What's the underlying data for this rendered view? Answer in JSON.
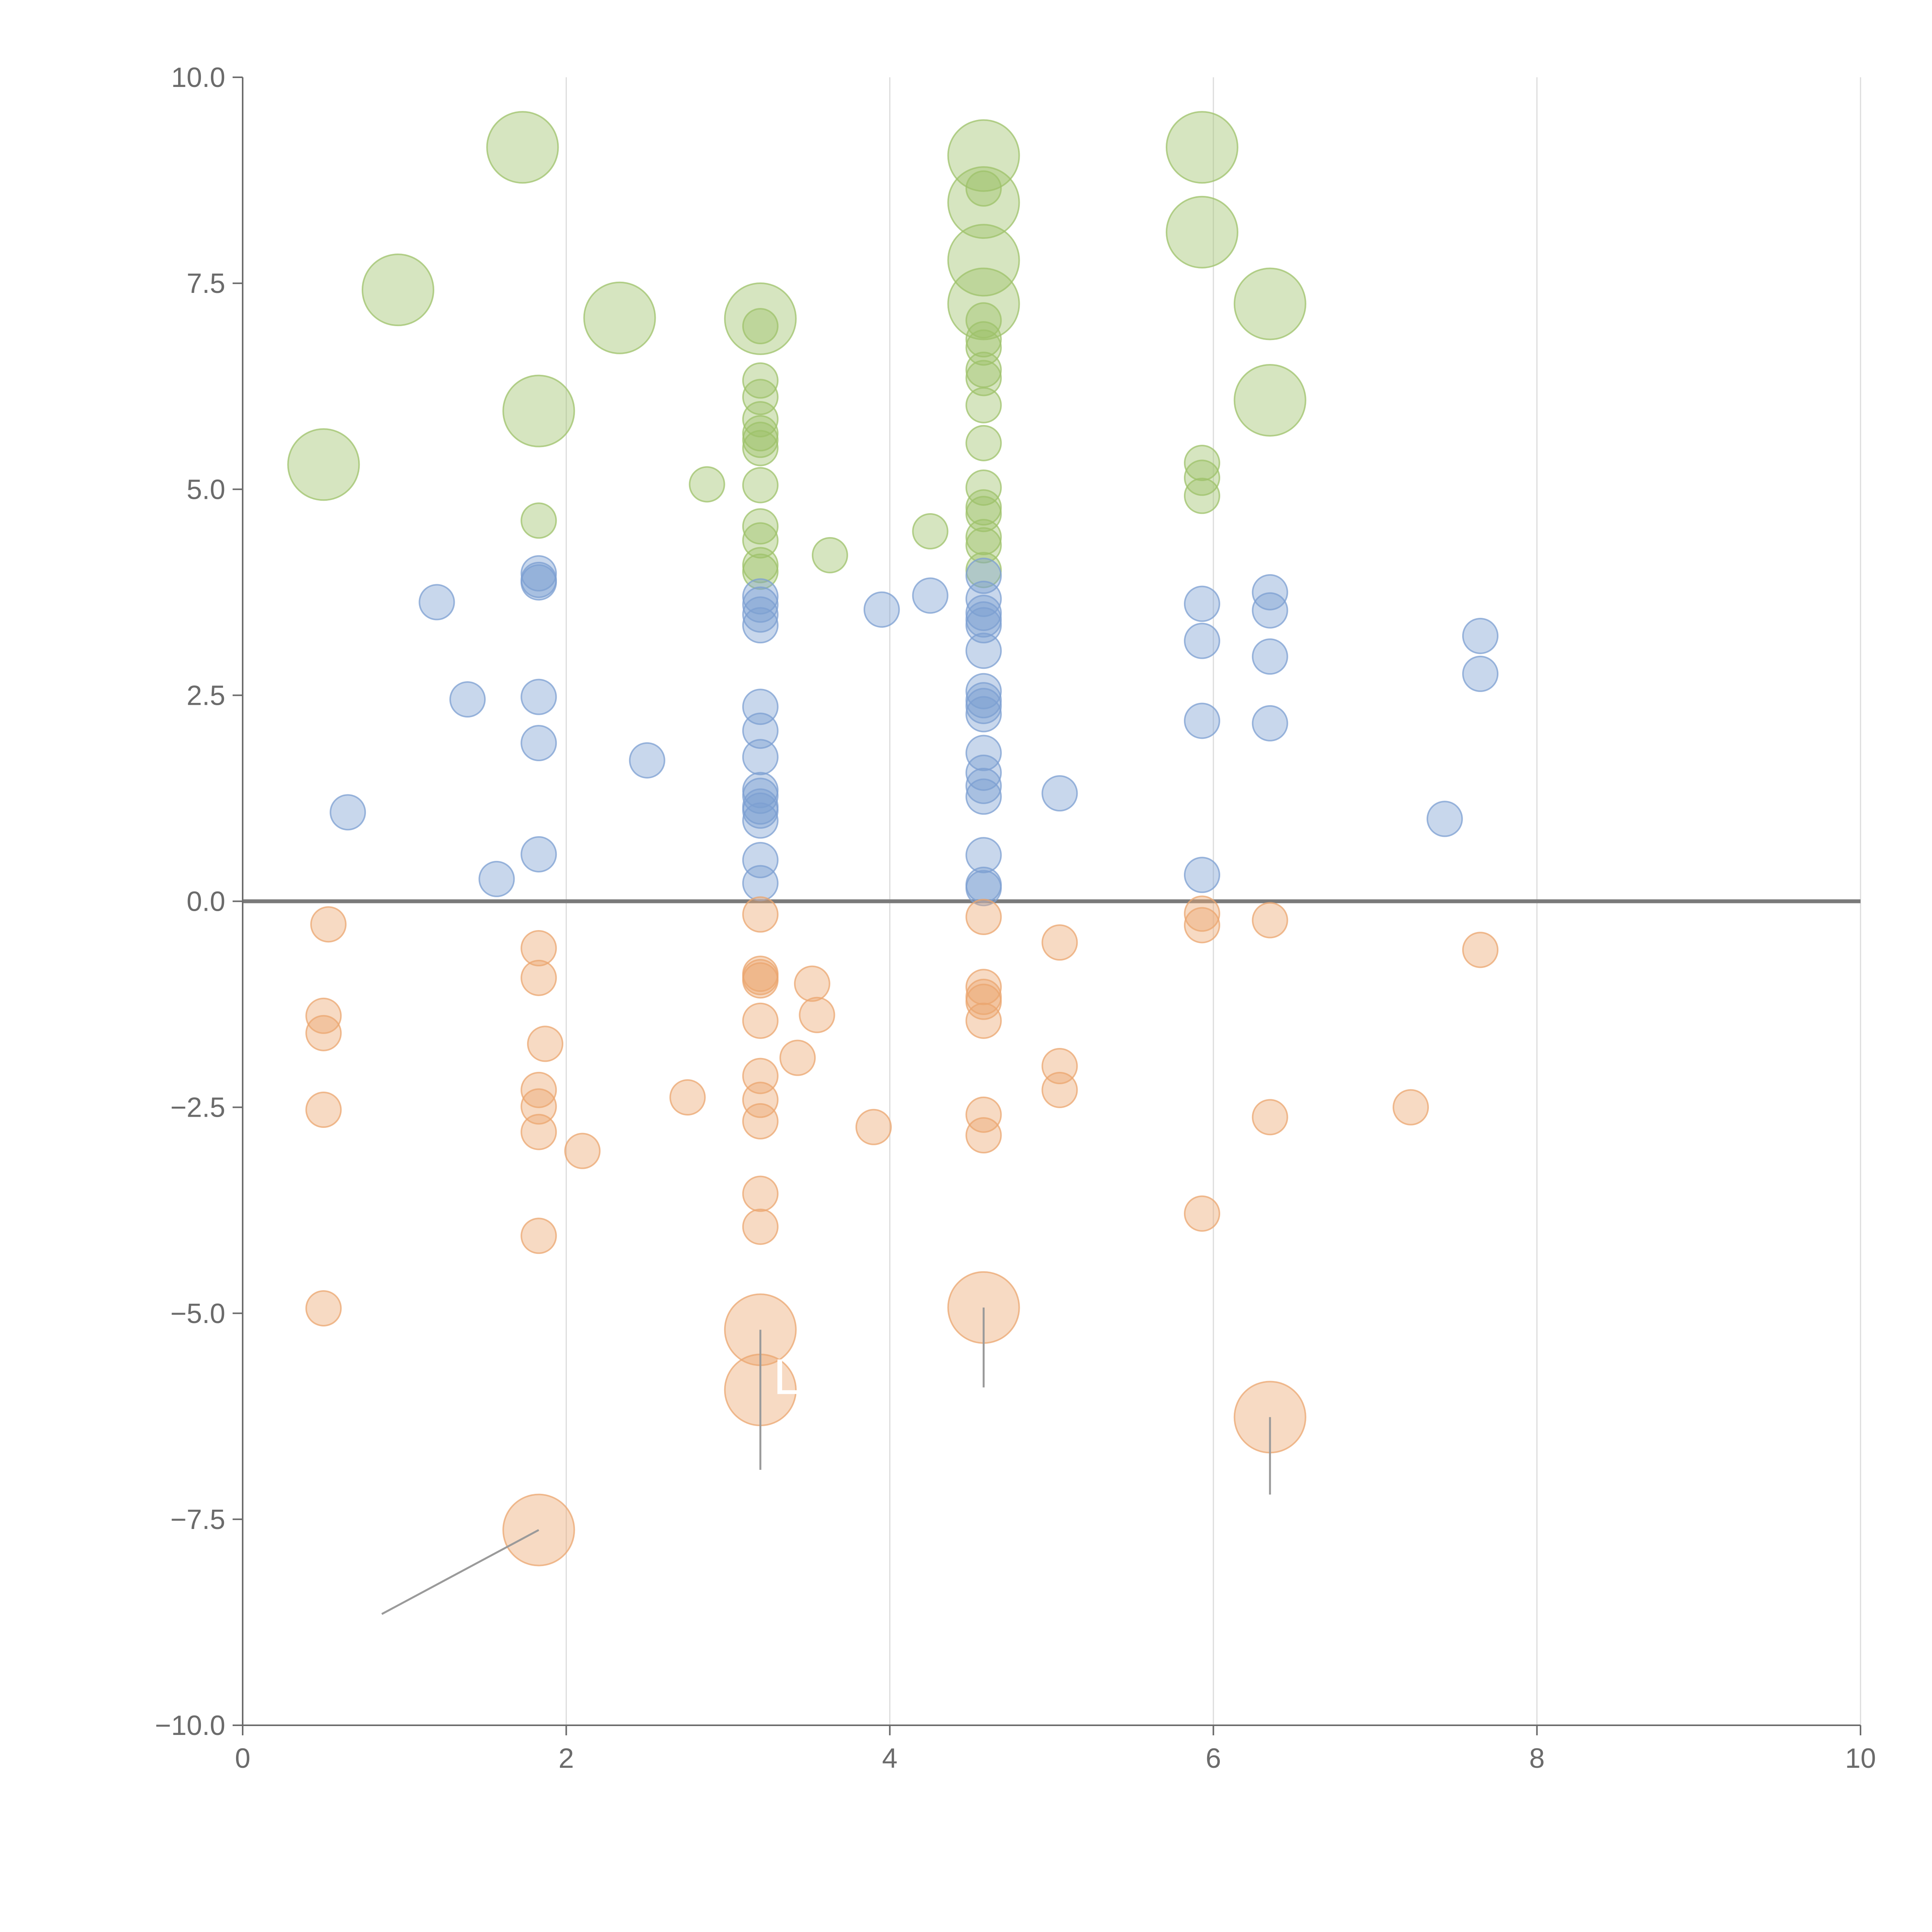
{
  "chart_data": {
    "type": "scatter",
    "title": "",
    "xlabel": "",
    "ylabel": "",
    "xlim": [
      0,
      10
    ],
    "ylim": [
      -10,
      10
    ],
    "x_ticks": [
      "0",
      "2",
      "4",
      "6",
      "8",
      "10"
    ],
    "x_tick_values": [
      0,
      2,
      4,
      6,
      8,
      10
    ],
    "y_ticks": [
      "10.0",
      "7.5",
      "5.0",
      "2.5",
      "0.0",
      "−2.5",
      "−5.0",
      "−7.5",
      "−10.0"
    ],
    "y_tick_values": [
      10,
      7.5,
      5,
      2.5,
      0,
      -2.5,
      -5,
      -7.5,
      -10
    ],
    "grid": "vertical",
    "reference_line": 0,
    "legend": "none",
    "series": [
      {
        "name": "green",
        "color": "#9dc26a",
        "points": [
          {
            "x": 1.73,
            "y": 9.15,
            "s": "large"
          },
          {
            "x": 0.96,
            "y": 7.42,
            "s": "large"
          },
          {
            "x": 2.33,
            "y": 7.08,
            "s": "large"
          },
          {
            "x": 1.83,
            "y": 5.95,
            "s": "large"
          },
          {
            "x": 0.5,
            "y": 5.3,
            "s": "large"
          },
          {
            "x": 3.2,
            "y": 7.07,
            "s": "large"
          },
          {
            "x": 4.58,
            "y": 9.05,
            "s": "large"
          },
          {
            "x": 4.58,
            "y": 8.48,
            "s": "large"
          },
          {
            "x": 4.58,
            "y": 7.78,
            "s": "large"
          },
          {
            "x": 4.58,
            "y": 7.25,
            "s": "large"
          },
          {
            "x": 5.93,
            "y": 9.15,
            "s": "large"
          },
          {
            "x": 5.93,
            "y": 8.12,
            "s": "large"
          },
          {
            "x": 6.35,
            "y": 7.25,
            "s": "large"
          },
          {
            "x": 6.35,
            "y": 6.08,
            "s": "large"
          },
          {
            "x": 1.83,
            "y": 4.62,
            "s": "small"
          },
          {
            "x": 2.87,
            "y": 5.06,
            "s": "small"
          },
          {
            "x": 3.63,
            "y": 4.2,
            "s": "small"
          },
          {
            "x": 4.25,
            "y": 4.49,
            "s": "small"
          },
          {
            "x": 3.2,
            "y": 6.98,
            "s": "small"
          },
          {
            "x": 3.2,
            "y": 6.32,
            "s": "small"
          },
          {
            "x": 3.2,
            "y": 6.12,
            "s": "small"
          },
          {
            "x": 3.2,
            "y": 5.85,
            "s": "small"
          },
          {
            "x": 3.2,
            "y": 5.68,
            "s": "small"
          },
          {
            "x": 3.2,
            "y": 5.6,
            "s": "small"
          },
          {
            "x": 3.2,
            "y": 5.5,
            "s": "small"
          },
          {
            "x": 3.2,
            "y": 5.05,
            "s": "small"
          },
          {
            "x": 3.2,
            "y": 4.55,
            "s": "small"
          },
          {
            "x": 3.2,
            "y": 4.38,
            "s": "small"
          },
          {
            "x": 3.2,
            "y": 4.08,
            "s": "small"
          },
          {
            "x": 3.2,
            "y": 4.0,
            "s": "small"
          },
          {
            "x": 4.58,
            "y": 8.65,
            "s": "small"
          },
          {
            "x": 4.58,
            "y": 7.05,
            "s": "small"
          },
          {
            "x": 4.58,
            "y": 6.82,
            "s": "small"
          },
          {
            "x": 4.58,
            "y": 6.72,
            "s": "small"
          },
          {
            "x": 4.58,
            "y": 6.45,
            "s": "small"
          },
          {
            "x": 4.58,
            "y": 6.35,
            "s": "small"
          },
          {
            "x": 4.58,
            "y": 6.02,
            "s": "small"
          },
          {
            "x": 4.58,
            "y": 5.56,
            "s": "small"
          },
          {
            "x": 4.58,
            "y": 5.02,
            "s": "small"
          },
          {
            "x": 4.58,
            "y": 4.78,
            "s": "small"
          },
          {
            "x": 4.58,
            "y": 4.7,
            "s": "small"
          },
          {
            "x": 4.58,
            "y": 4.42,
            "s": "small"
          },
          {
            "x": 4.58,
            "y": 4.32,
            "s": "small"
          },
          {
            "x": 4.58,
            "y": 4.02,
            "s": "small"
          },
          {
            "x": 5.93,
            "y": 5.32,
            "s": "small"
          },
          {
            "x": 5.93,
            "y": 5.14,
            "s": "small"
          },
          {
            "x": 5.93,
            "y": 4.92,
            "s": "small"
          }
        ]
      },
      {
        "name": "blue",
        "color": "#7c9fd2",
        "points": [
          {
            "x": 1.2,
            "y": 3.63
          },
          {
            "x": 1.39,
            "y": 2.45
          },
          {
            "x": 0.65,
            "y": 1.08
          },
          {
            "x": 1.57,
            "y": 0.27
          },
          {
            "x": 1.83,
            "y": 3.98
          },
          {
            "x": 1.83,
            "y": 3.9
          },
          {
            "x": 1.83,
            "y": 3.87
          },
          {
            "x": 1.83,
            "y": 2.48
          },
          {
            "x": 1.83,
            "y": 1.92
          },
          {
            "x": 1.83,
            "y": 0.57
          },
          {
            "x": 2.5,
            "y": 1.71
          },
          {
            "x": 3.95,
            "y": 3.54
          },
          {
            "x": 4.25,
            "y": 3.71
          },
          {
            "x": 5.05,
            "y": 1.31
          },
          {
            "x": 7.43,
            "y": 1.0
          },
          {
            "x": 7.65,
            "y": 3.22
          },
          {
            "x": 7.65,
            "y": 2.76
          },
          {
            "x": 3.2,
            "y": 3.7
          },
          {
            "x": 3.2,
            "y": 3.6
          },
          {
            "x": 3.2,
            "y": 3.48
          },
          {
            "x": 3.2,
            "y": 3.35
          },
          {
            "x": 3.2,
            "y": 2.36
          },
          {
            "x": 3.2,
            "y": 2.07
          },
          {
            "x": 3.2,
            "y": 1.75
          },
          {
            "x": 3.2,
            "y": 1.35
          },
          {
            "x": 3.2,
            "y": 1.28
          },
          {
            "x": 3.2,
            "y": 1.15
          },
          {
            "x": 3.2,
            "y": 1.1
          },
          {
            "x": 3.2,
            "y": 0.98
          },
          {
            "x": 3.2,
            "y": 0.5
          },
          {
            "x": 3.2,
            "y": 0.22
          },
          {
            "x": 4.58,
            "y": 3.95
          },
          {
            "x": 4.58,
            "y": 3.67
          },
          {
            "x": 4.58,
            "y": 3.5
          },
          {
            "x": 4.58,
            "y": 3.42
          },
          {
            "x": 4.58,
            "y": 3.35
          },
          {
            "x": 4.58,
            "y": 3.04
          },
          {
            "x": 4.58,
            "y": 2.55
          },
          {
            "x": 4.58,
            "y": 2.44
          },
          {
            "x": 4.58,
            "y": 2.37
          },
          {
            "x": 4.58,
            "y": 2.27
          },
          {
            "x": 4.58,
            "y": 1.8
          },
          {
            "x": 4.58,
            "y": 1.56
          },
          {
            "x": 4.58,
            "y": 1.4
          },
          {
            "x": 4.58,
            "y": 1.27
          },
          {
            "x": 4.58,
            "y": 0.56
          },
          {
            "x": 4.58,
            "y": 0.2
          },
          {
            "x": 4.58,
            "y": 0.16
          },
          {
            "x": 5.93,
            "y": 3.61
          },
          {
            "x": 5.93,
            "y": 3.16
          },
          {
            "x": 5.93,
            "y": 2.19
          },
          {
            "x": 5.93,
            "y": 0.32
          },
          {
            "x": 6.35,
            "y": 3.75
          },
          {
            "x": 6.35,
            "y": 3.53
          },
          {
            "x": 6.35,
            "y": 2.97
          },
          {
            "x": 6.35,
            "y": 2.16
          }
        ]
      },
      {
        "name": "orange",
        "color": "#eba66f",
        "points": [
          {
            "x": 1.83,
            "y": -7.63,
            "s": "large"
          },
          {
            "x": 3.2,
            "y": -5.2,
            "s": "large"
          },
          {
            "x": 3.2,
            "y": -5.93,
            "s": "large"
          },
          {
            "x": 4.58,
            "y": -4.93,
            "s": "large"
          },
          {
            "x": 6.35,
            "y": -6.26,
            "s": "large"
          },
          {
            "x": 0.53,
            "y": -0.28
          },
          {
            "x": 0.5,
            "y": -1.39
          },
          {
            "x": 0.5,
            "y": -1.6
          },
          {
            "x": 0.5,
            "y": -2.53
          },
          {
            "x": 0.5,
            "y": -4.94
          },
          {
            "x": 1.83,
            "y": -0.57
          },
          {
            "x": 1.83,
            "y": -0.93
          },
          {
            "x": 1.87,
            "y": -1.73
          },
          {
            "x": 1.83,
            "y": -2.29
          },
          {
            "x": 1.83,
            "y": -2.49
          },
          {
            "x": 1.83,
            "y": -2.8
          },
          {
            "x": 2.1,
            "y": -3.03
          },
          {
            "x": 1.83,
            "y": -4.06
          },
          {
            "x": 2.75,
            "y": -2.38
          },
          {
            "x": 3.43,
            "y": -1.9
          },
          {
            "x": 3.52,
            "y": -1.0
          },
          {
            "x": 3.55,
            "y": -1.38
          },
          {
            "x": 3.9,
            "y": -2.74
          },
          {
            "x": 3.2,
            "y": -0.16
          },
          {
            "x": 3.2,
            "y": -0.88
          },
          {
            "x": 3.2,
            "y": -0.92
          },
          {
            "x": 3.2,
            "y": -0.96
          },
          {
            "x": 3.2,
            "y": -1.45
          },
          {
            "x": 3.2,
            "y": -2.12
          },
          {
            "x": 3.2,
            "y": -2.41
          },
          {
            "x": 3.2,
            "y": -2.67
          },
          {
            "x": 3.2,
            "y": -3.55
          },
          {
            "x": 3.2,
            "y": -3.95
          },
          {
            "x": 4.58,
            "y": -0.19
          },
          {
            "x": 4.58,
            "y": -1.04
          },
          {
            "x": 4.58,
            "y": -1.16
          },
          {
            "x": 4.58,
            "y": -1.22
          },
          {
            "x": 4.58,
            "y": -1.45
          },
          {
            "x": 4.58,
            "y": -2.59
          },
          {
            "x": 4.58,
            "y": -2.84
          },
          {
            "x": 5.05,
            "y": -0.5
          },
          {
            "x": 5.05,
            "y": -2.0
          },
          {
            "x": 5.05,
            "y": -2.29
          },
          {
            "x": 5.93,
            "y": -0.15
          },
          {
            "x": 5.93,
            "y": -0.29
          },
          {
            "x": 5.93,
            "y": -3.79
          },
          {
            "x": 6.35,
            "y": -0.23
          },
          {
            "x": 6.35,
            "y": -2.62
          },
          {
            "x": 7.22,
            "y": -2.5
          },
          {
            "x": 7.65,
            "y": -0.59
          }
        ]
      }
    ],
    "annotations": [
      {
        "text": "L",
        "x": 3.28,
        "y": -5.98
      }
    ]
  }
}
